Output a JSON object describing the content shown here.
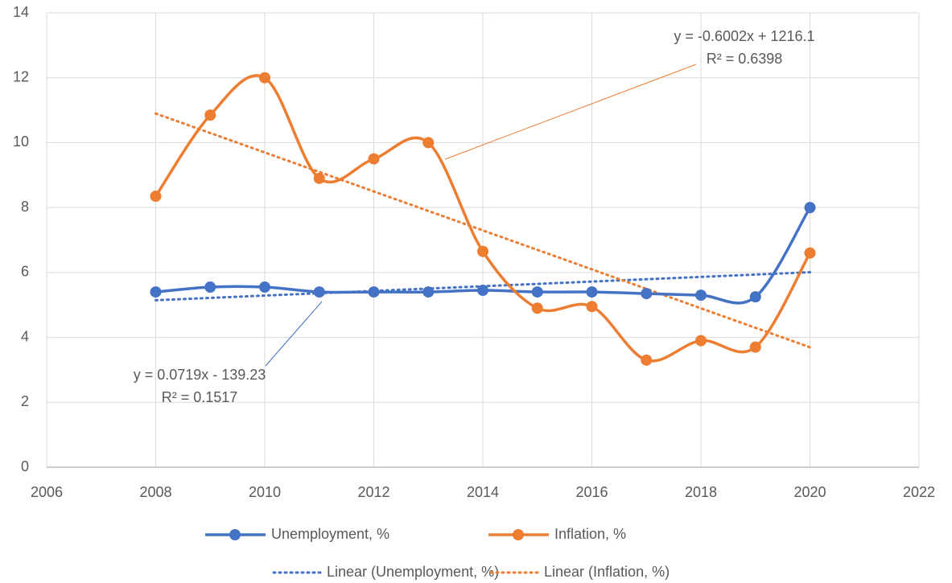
{
  "chart_data": {
    "type": "line",
    "x": [
      2008,
      2009,
      2010,
      2011,
      2012,
      2013,
      2014,
      2015,
      2016,
      2017,
      2018,
      2019,
      2020
    ],
    "series": [
      {
        "name": "Unemployment, %",
        "color": "#4472c4",
        "values": [
          5.4,
          5.55,
          5.55,
          5.4,
          5.4,
          5.4,
          5.45,
          5.4,
          5.4,
          5.35,
          5.3,
          5.25,
          8.0
        ]
      },
      {
        "name": "Inflation, %",
        "color": "#ed7d31",
        "values": [
          8.35,
          10.85,
          12.0,
          8.9,
          9.5,
          10.0,
          6.65,
          4.9,
          4.95,
          3.3,
          3.9,
          3.7,
          6.6
        ]
      }
    ],
    "trendlines": [
      {
        "name": "Linear (Unemployment, %)",
        "color": "#4472c4",
        "slope": 0.0719,
        "intercept": -139.23,
        "equation": "y = 0.0719x - 139.23",
        "r2": "R² = 0.1517"
      },
      {
        "name": "Linear (Inflation, %)",
        "color": "#ed7d31",
        "slope": -0.6002,
        "intercept": 1216.1,
        "equation": "y = -0.6002x + 1216.1",
        "r2": "R² = 0.6398"
      }
    ],
    "xlim": [
      2006,
      2022
    ],
    "xticks": [
      2006,
      2008,
      2010,
      2012,
      2014,
      2016,
      2018,
      2020,
      2022
    ],
    "ylim": [
      0,
      14
    ],
    "yticks": [
      0,
      2,
      4,
      6,
      8,
      10,
      12,
      14
    ],
    "grid": true,
    "legend": "bottom"
  }
}
